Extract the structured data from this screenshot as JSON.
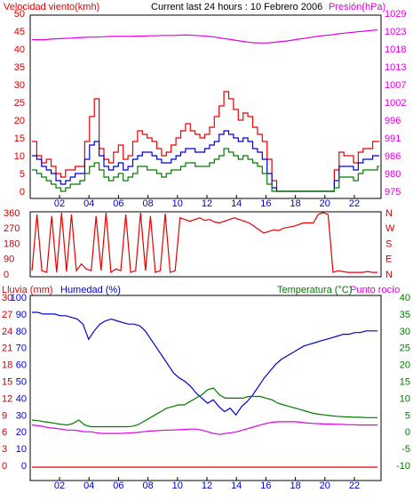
{
  "header": {
    "left": "Velocidad viento(kmh)",
    "center": "Current last 24 hours : 10 Febrero 2006",
    "right": "Presión(hPa)"
  },
  "colors": {
    "red": "#e60000",
    "blue": "#0000cc",
    "green": "#007a00",
    "magenta": "#e000e0",
    "tick_red": "#cc0000",
    "frame": "#000000"
  },
  "chart_data": [
    {
      "type": "line",
      "name": "wind-pressure",
      "x_ticks": [
        "02",
        "04",
        "06",
        "08",
        "10",
        "12",
        "14",
        "16",
        "18",
        "20",
        "22"
      ],
      "y_left": {
        "label": "Velocidad viento(kmh)",
        "ticks": [
          "0",
          "5",
          "10",
          "15",
          "20",
          "25",
          "30",
          "35",
          "40",
          "45",
          "50"
        ],
        "range": [
          0,
          50
        ]
      },
      "y_right": {
        "label": "Presión(hPa)",
        "ticks": [
          "975",
          "980",
          "986",
          "991",
          "996",
          "1002",
          "1007",
          "1013",
          "1018",
          "1023",
          "1029"
        ],
        "range": [
          975,
          1029
        ]
      },
      "series": [
        {
          "name": "Velocidad viento",
          "color": "red",
          "values": [
            14,
            10,
            8,
            9,
            7,
            5,
            4,
            6,
            6,
            7,
            7,
            14,
            21,
            26,
            12,
            9,
            8,
            11,
            13,
            9,
            10,
            14,
            17,
            16,
            15,
            14,
            12,
            10,
            11,
            13,
            15,
            17,
            19,
            17,
            16,
            15,
            16,
            18,
            21,
            24,
            28,
            26,
            23,
            20,
            22,
            21,
            18,
            16,
            14,
            9,
            3,
            0,
            0,
            0,
            0,
            0,
            0,
            0,
            0,
            0,
            0,
            0,
            0,
            6,
            11,
            10,
            10,
            8,
            11,
            12,
            12,
            14,
            14
          ]
        },
        {
          "name": "Promedio",
          "color": "blue",
          "values": [
            10,
            9,
            7,
            6,
            5,
            3,
            2,
            3,
            4,
            5,
            5,
            9,
            13,
            14,
            10,
            7,
            6,
            7,
            8,
            6,
            7,
            9,
            10,
            11,
            11,
            10,
            9,
            8,
            8,
            9,
            10,
            11,
            12,
            12,
            11,
            11,
            12,
            13,
            14,
            16,
            17,
            16,
            15,
            14,
            15,
            14,
            12,
            11,
            9,
            5,
            1,
            0,
            0,
            0,
            0,
            0,
            0,
            0,
            0,
            0,
            0,
            0,
            0,
            3,
            7,
            7,
            7,
            6,
            8,
            9,
            9,
            10,
            10
          ]
        },
        {
          "name": "Racha mínima",
          "color": "green",
          "values": [
            6,
            5,
            4,
            3,
            2,
            1,
            0,
            1,
            2,
            2,
            3,
            5,
            7,
            8,
            6,
            4,
            3,
            4,
            5,
            3,
            4,
            5,
            7,
            7,
            6,
            6,
            5,
            4,
            5,
            6,
            6,
            7,
            8,
            8,
            7,
            7,
            7,
            8,
            9,
            10,
            12,
            11,
            10,
            9,
            10,
            9,
            8,
            7,
            5,
            2,
            0,
            0,
            0,
            0,
            0,
            0,
            0,
            0,
            0,
            0,
            0,
            0,
            0,
            1,
            4,
            4,
            4,
            3,
            5,
            6,
            6,
            6,
            7
          ]
        },
        {
          "name": "Presión",
          "color": "magenta",
          "axis": "right",
          "values": [
            1021,
            1021,
            1021,
            1021.2,
            1021.3,
            1021.4,
            1021.5,
            1021.6,
            1021.7,
            1021.8,
            1021.8,
            1021.9,
            1022,
            1022,
            1022,
            1022,
            1022.1,
            1022.1,
            1022.2,
            1022.2,
            1022.3,
            1022.3,
            1022.3,
            1022.4,
            1022.4,
            1022.3,
            1022.2,
            1022,
            1021.8,
            1021.5,
            1021.2,
            1020.9,
            1020.6,
            1020.3,
            1020.1,
            1020,
            1020,
            1020.2,
            1020.4,
            1020.6,
            1020.9,
            1021.2,
            1021.5,
            1021.8,
            1022.1,
            1022.3,
            1022.5,
            1022.8,
            1023,
            1023.2,
            1023.4,
            1023.6,
            1023.8,
            1024
          ]
        }
      ]
    },
    {
      "type": "line",
      "name": "wind-direction",
      "y_left": {
        "ticks": [
          "0",
          "90",
          "180",
          "270",
          "360"
        ],
        "range": [
          0,
          360
        ]
      },
      "y_right": {
        "ticks": [
          "N",
          "E",
          "S",
          "W",
          "N"
        ]
      },
      "series": [
        {
          "name": "Dirección",
          "color": "red",
          "values": [
            20,
            350,
            20,
            10,
            340,
            10,
            360,
            15,
            350,
            20,
            60,
            30,
            20,
            340,
            20,
            360,
            10,
            30,
            20,
            350,
            10,
            20,
            360,
            20,
            340,
            10,
            20,
            355,
            10,
            20,
            330,
            320,
            310,
            320,
            330,
            315,
            320,
            305,
            300,
            310,
            320,
            330,
            320,
            310,
            300,
            280,
            260,
            240,
            250,
            260,
            255,
            270,
            275,
            280,
            290,
            300,
            300,
            300,
            350,
            360,
            350,
            10,
            20,
            15,
            10,
            10,
            10,
            10,
            15,
            10,
            10
          ]
        }
      ]
    },
    {
      "type": "line",
      "name": "humidity-temperature",
      "y_left_outer": {
        "label": "Lluvia (mm)",
        "ticks": [
          "0",
          "3",
          "6",
          "9",
          "12",
          "15",
          "18",
          "21",
          "24",
          "27",
          "30"
        ]
      },
      "y_left_inner": {
        "label": "Humedad (%)",
        "ticks": [
          "0",
          "10",
          "20",
          "30",
          "40",
          "50",
          "60",
          "70",
          "80",
          "90",
          "100"
        ],
        "range": [
          0,
          100
        ]
      },
      "y_right": {
        "label": "Temperatura (°C)",
        "label2": "Punto rocío",
        "ticks": [
          "-10",
          "-5",
          "0",
          "5",
          "10",
          "15",
          "20",
          "25",
          "30",
          "35",
          "40"
        ],
        "range": [
          -10,
          40
        ]
      },
      "series": [
        {
          "name": "Humedad",
          "color": "blue",
          "values": [
            91,
            91,
            90,
            90,
            90,
            89,
            89,
            88,
            87,
            84,
            75,
            80,
            84,
            86,
            87,
            86,
            85,
            84,
            84,
            83,
            80,
            75,
            70,
            65,
            60,
            55,
            52,
            50,
            47,
            43,
            40,
            37,
            39,
            35,
            32,
            34,
            30,
            35,
            38,
            42,
            47,
            52,
            56,
            60,
            63,
            65,
            67,
            69,
            71,
            72,
            73,
            74,
            75,
            76,
            77,
            78,
            78,
            79,
            79,
            80,
            80,
            80
          ]
        },
        {
          "name": "Temperatura",
          "color": "green",
          "values": [
            3.5,
            3.3,
            3,
            2.8,
            2.5,
            2.2,
            2,
            2.5,
            3.5,
            2,
            1.5,
            1.5,
            1.5,
            1.5,
            1.5,
            1.5,
            1.5,
            1.6,
            2,
            3,
            4,
            5,
            6,
            7,
            7.5,
            8,
            8,
            9,
            10,
            11,
            12.5,
            13,
            11,
            10,
            10,
            10,
            10,
            10.5,
            10.5,
            10.5,
            10,
            9.5,
            8.5,
            8,
            7.5,
            7,
            6.5,
            6,
            5.5,
            5.2,
            5,
            4.8,
            4.6,
            4.5,
            4.4,
            4.3,
            4.3,
            4.2,
            4.2,
            4.2
          ]
        },
        {
          "name": "Punto rocío",
          "color": "magenta",
          "values": [
            2,
            1.8,
            1.5,
            1.2,
            1,
            0.8,
            0.5,
            0.5,
            0.3,
            0,
            0,
            -0.3,
            -0.5,
            -0.5,
            -0.5,
            -0.5,
            -0.4,
            -0.3,
            -0.2,
            0,
            0.2,
            0.3,
            0.4,
            0.5,
            0.5,
            0.6,
            0.7,
            0.8,
            0.8,
            0.5,
            0,
            -0.5,
            -0.8,
            -0.5,
            -0.3,
            0,
            0.5,
            1,
            1.5,
            2,
            2.5,
            2.8,
            3,
            3,
            3,
            3,
            2.8,
            2.6,
            2.5,
            2.4,
            2.3,
            2.3,
            2.2,
            2.2,
            2.1,
            2.1,
            2,
            2,
            2,
            2
          ]
        },
        {
          "name": "Lluvia",
          "color": "red",
          "values": [
            0,
            0,
            0,
            0,
            0,
            0,
            0,
            0,
            0,
            0,
            0,
            0
          ]
        }
      ]
    }
  ]
}
